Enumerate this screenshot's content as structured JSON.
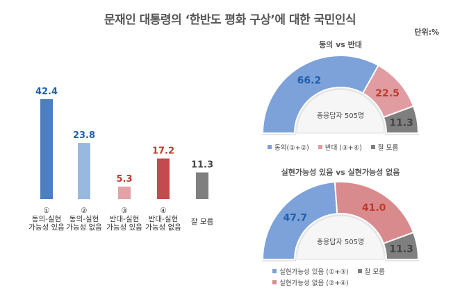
{
  "title": "문재인 대통령의 ‘한반도 평화 구상’에 대한 국민인식",
  "unit": "단위:%",
  "chart_data": [
    {
      "type": "bar",
      "categories": [
        [
          "①",
          "동의-실현",
          "가능성 있음"
        ],
        [
          "②",
          "동의-실현",
          "가능성 없음"
        ],
        [
          "③",
          "반대-실현",
          "가능성 있음"
        ],
        [
          "④",
          "반대-실현",
          "가능성 없음"
        ],
        [
          "잘 모름"
        ]
      ],
      "values": [
        42.4,
        23.8,
        5.3,
        17.2,
        11.3
      ],
      "value_labels": [
        "42.4",
        "23.8",
        "5.3",
        "17.2",
        "11.3"
      ],
      "colors": [
        "#4d7ec0",
        "#98b8df",
        "#e2a3a6",
        "#c44a4d",
        "#7f7f7f"
      ],
      "label_colors": [
        "#1f5fad",
        "#1f5fad",
        "#c0392b",
        "#c0392b",
        "#444444"
      ]
    },
    {
      "type": "pie",
      "title": "동의 vs 반대",
      "center_text": "총응답자 505명",
      "slices": [
        {
          "value": 66.2,
          "label": "66.2",
          "color": "#7ca2d9",
          "label_color": "#1f5fad"
        },
        {
          "value": 22.5,
          "label": "22.5",
          "color": "#e09ca0",
          "label_color": "#c0392b"
        },
        {
          "value": 11.3,
          "label": "11.3",
          "color": "#7f7f7f",
          "label_color": "#444444"
        }
      ],
      "legend": [
        "동의(①+②)",
        "반대 (③+④)",
        "잘 모름"
      ]
    },
    {
      "type": "pie",
      "title": "실현가능성 있음 vs 실현가능성 없음",
      "center_text": "총응답자 505명",
      "slices": [
        {
          "value": 47.7,
          "label": "47.7",
          "color": "#7ca2d9",
          "label_color": "#1f5fad"
        },
        {
          "value": 41.0,
          "label": "41.0",
          "color": "#d98a8d",
          "label_color": "#c0392b"
        },
        {
          "value": 11.3,
          "label": "11.3",
          "color": "#7f7f7f",
          "label_color": "#444444"
        }
      ],
      "legend": [
        "실현가능성 있음 (①+③)",
        "잘 모름",
        "실현가능성 없음 (②+④)"
      ]
    }
  ]
}
